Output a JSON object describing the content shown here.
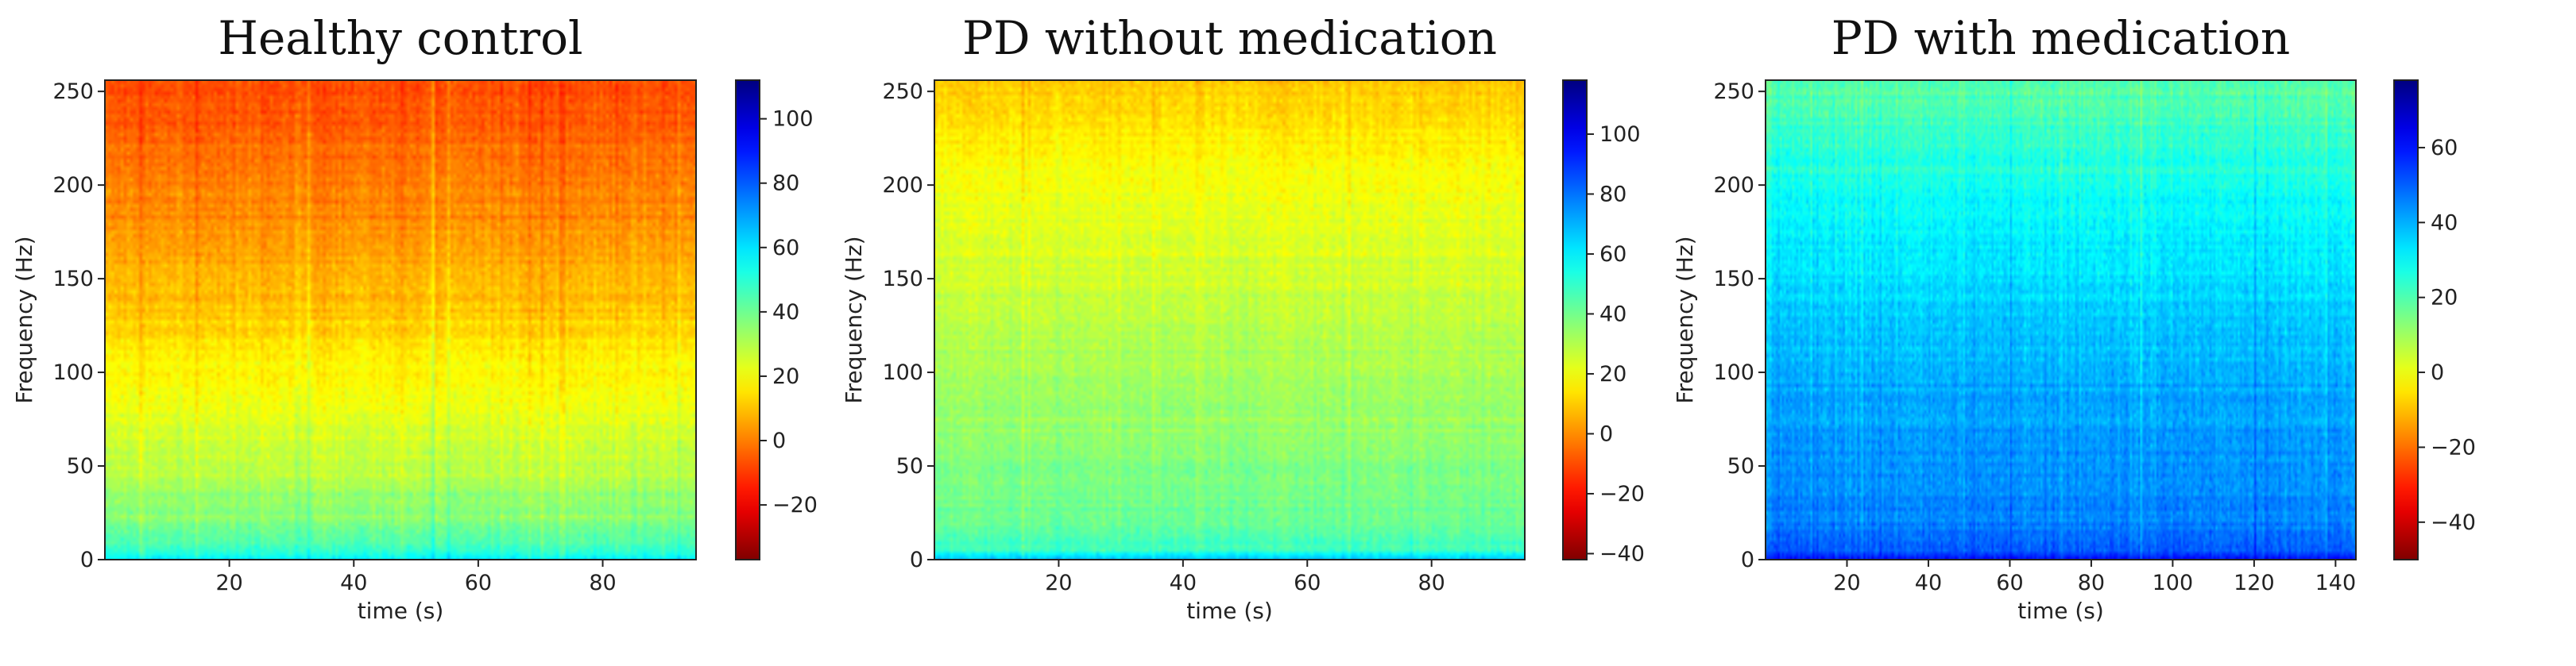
{
  "chart_data": [
    {
      "type": "heatmap",
      "title": "Healthy control",
      "xlabel": "time (s)",
      "ylabel": "Frequency (Hz)",
      "xlim": [
        0,
        95
      ],
      "ylim": [
        0,
        256
      ],
      "x_ticks": [
        20,
        40,
        60,
        80
      ],
      "y_ticks": [
        0,
        50,
        100,
        150,
        200,
        250
      ],
      "colormap": "jet_r",
      "color_range": [
        -37,
        112
      ],
      "colorbar_ticks": [
        -20,
        0,
        20,
        40,
        60,
        80,
        100
      ],
      "value_profile": {
        "frequency_hz": [
          0,
          5,
          20,
          50,
          100,
          150,
          200,
          256
        ],
        "typical_value": [
          60,
          48,
          38,
          28,
          18,
          8,
          0,
          -8
        ]
      }
    },
    {
      "type": "heatmap",
      "title": "PD without medication",
      "xlabel": "time (s)",
      "ylabel": "Frequency (Hz)",
      "xlim": [
        0,
        95
      ],
      "ylim": [
        0,
        256
      ],
      "x_ticks": [
        20,
        40,
        60,
        80
      ],
      "y_ticks": [
        0,
        50,
        100,
        150,
        200,
        250
      ],
      "colormap": "jet_r",
      "color_range": [
        -42,
        118
      ],
      "colorbar_ticks": [
        -40,
        -20,
        0,
        20,
        40,
        60,
        80,
        100
      ],
      "value_profile": {
        "frequency_hz": [
          0,
          5,
          20,
          50,
          100,
          150,
          200,
          256
        ],
        "typical_value": [
          70,
          50,
          42,
          38,
          32,
          26,
          20,
          10
        ]
      }
    },
    {
      "type": "heatmap",
      "title": "PD with medication",
      "xlabel": "time (s)",
      "ylabel": "Frequency (Hz)",
      "xlim": [
        0,
        145
      ],
      "ylim": [
        0,
        256
      ],
      "x_ticks": [
        20,
        40,
        60,
        80,
        100,
        120,
        140
      ],
      "y_ticks": [
        0,
        50,
        100,
        150,
        200,
        250
      ],
      "colormap": "jet_r",
      "color_range": [
        -50,
        78
      ],
      "colorbar_ticks": [
        -40,
        -20,
        0,
        20,
        40,
        60
      ],
      "value_profile": {
        "frequency_hz": [
          0,
          5,
          20,
          50,
          100,
          150,
          200,
          256
        ],
        "typical_value": [
          60,
          50,
          46,
          44,
          40,
          34,
          28,
          18
        ]
      }
    }
  ]
}
